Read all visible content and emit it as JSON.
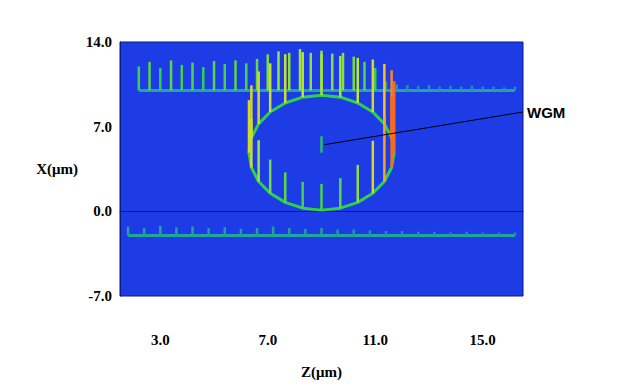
{
  "chart_data": {
    "type": "scatter",
    "xlabel": "Z(μm)",
    "ylabel": "X(μm)",
    "xlim": [
      1.5,
      16.5
    ],
    "xticks": [
      {
        "value": 3,
        "label": "3.0"
      },
      {
        "value": 7,
        "label": "7.0"
      },
      {
        "value": 11,
        "label": "11.0"
      },
      {
        "value": 15,
        "label": "15.0"
      }
    ],
    "ylim": [
      -7,
      14
    ],
    "yticks": [
      {
        "value": -7,
        "label": "-7.0"
      },
      {
        "value": 0,
        "label": "0.0"
      },
      {
        "value": 7,
        "label": "7.0"
      },
      {
        "value": 14,
        "label": "14.0"
      }
    ],
    "grid": false,
    "annotations": [
      {
        "text": "WGM",
        "z": 9.0,
        "x": 4.85
      }
    ],
    "series": [
      {
        "color": "#1fa89a",
        "z": [
          2.2,
          2.6,
          3.0,
          3.4,
          3.8,
          4.2,
          4.6,
          5.0,
          5.4,
          5.8,
          6.2,
          6.6,
          7.0,
          7.4,
          7.8,
          8.2,
          8.6,
          9.0,
          9.4,
          9.8,
          10.2,
          10.6,
          11.0,
          11.4,
          11.8,
          12.2,
          12.6,
          13.0,
          13.4,
          13.8,
          14.2,
          14.6,
          15.0,
          15.4,
          15.8,
          16.2
        ],
        "x": [
          10.0,
          10.0,
          10.0,
          10.0,
          10.0,
          10.0,
          10.0,
          10.0,
          10.0,
          10.0,
          10.0,
          10.0,
          10.0,
          10.0,
          10.0,
          10.0,
          10.0,
          10.0,
          10.0,
          10.0,
          10.0,
          10.0,
          10.0,
          10.0,
          10.0,
          10.0,
          10.0,
          10.0,
          10.0,
          10.0,
          10.0,
          10.0,
          10.0,
          10.0,
          10.0,
          10.0
        ],
        "intensity": [
          0.32,
          0.38,
          0.3,
          0.4,
          0.34,
          0.37,
          0.31,
          0.39,
          0.35,
          0.4,
          0.36,
          0.42,
          0.48,
          0.52,
          0.5,
          0.55,
          0.5,
          0.53,
          0.49,
          0.5,
          0.45,
          0.38,
          0.3,
          0.12,
          0.08,
          0.07,
          0.06,
          0.07,
          0.05,
          0.06,
          0.05,
          0.06,
          0.05,
          0.05,
          0.04,
          0.05
        ]
      },
      {
        "color": "#1fa89a",
        "z": [
          1.8,
          2.4,
          3.0,
          3.6,
          4.2,
          4.8,
          5.4,
          6.0,
          6.6,
          7.2,
          7.8,
          8.4,
          9.0,
          9.6,
          10.2,
          10.8,
          11.4,
          12.0,
          12.6,
          13.2,
          13.8,
          14.4,
          15.0,
          15.6,
          16.2
        ],
        "x": [
          -2.0,
          -2.0,
          -2.0,
          -2.0,
          -2.0,
          -2.0,
          -2.0,
          -2.0,
          -2.0,
          -2.0,
          -2.0,
          -2.0,
          -2.0,
          -2.0,
          -2.0,
          -2.0,
          -2.0,
          -2.0,
          -2.0,
          -2.0,
          -2.0,
          -2.0,
          -2.0,
          -2.0,
          -2.0
        ],
        "intensity": [
          0.12,
          0.1,
          0.13,
          0.11,
          0.12,
          0.1,
          0.11,
          0.09,
          0.1,
          0.12,
          0.1,
          0.09,
          0.1,
          0.08,
          0.08,
          0.07,
          0.06,
          0.06,
          0.05,
          0.05,
          0.04,
          0.05,
          0.04,
          0.04,
          0.04
        ]
      },
      {
        "color": "#2fd04a",
        "z": [
          11.7,
          11.61,
          11.34,
          10.91,
          10.35,
          9.7,
          9.0,
          8.3,
          7.65,
          7.09,
          6.66,
          6.39,
          6.3,
          6.39,
          6.66,
          7.09,
          7.65,
          8.3,
          9.0,
          9.7,
          10.35,
          10.91,
          11.34,
          11.61,
          11.7
        ],
        "x": [
          4.85,
          6.08,
          7.23,
          8.21,
          8.96,
          9.44,
          9.6,
          9.44,
          8.96,
          8.21,
          7.23,
          6.08,
          4.85,
          3.62,
          2.47,
          1.49,
          0.74,
          0.26,
          0.1,
          0.26,
          0.74,
          1.49,
          2.47,
          3.62,
          4.85
        ],
        "intensity": [
          0.95,
          0.9,
          0.8,
          0.7,
          0.6,
          0.55,
          0.55,
          0.6,
          0.65,
          0.65,
          0.7,
          0.7,
          0.7,
          0.65,
          0.55,
          0.45,
          0.4,
          0.35,
          0.35,
          0.4,
          0.5,
          0.7,
          0.85,
          0.95,
          0.95
        ]
      },
      {
        "color": "#2fd04a",
        "z": [
          9.0
        ],
        "x": [
          4.85
        ],
        "intensity": [
          0.22
        ]
      }
    ]
  }
}
